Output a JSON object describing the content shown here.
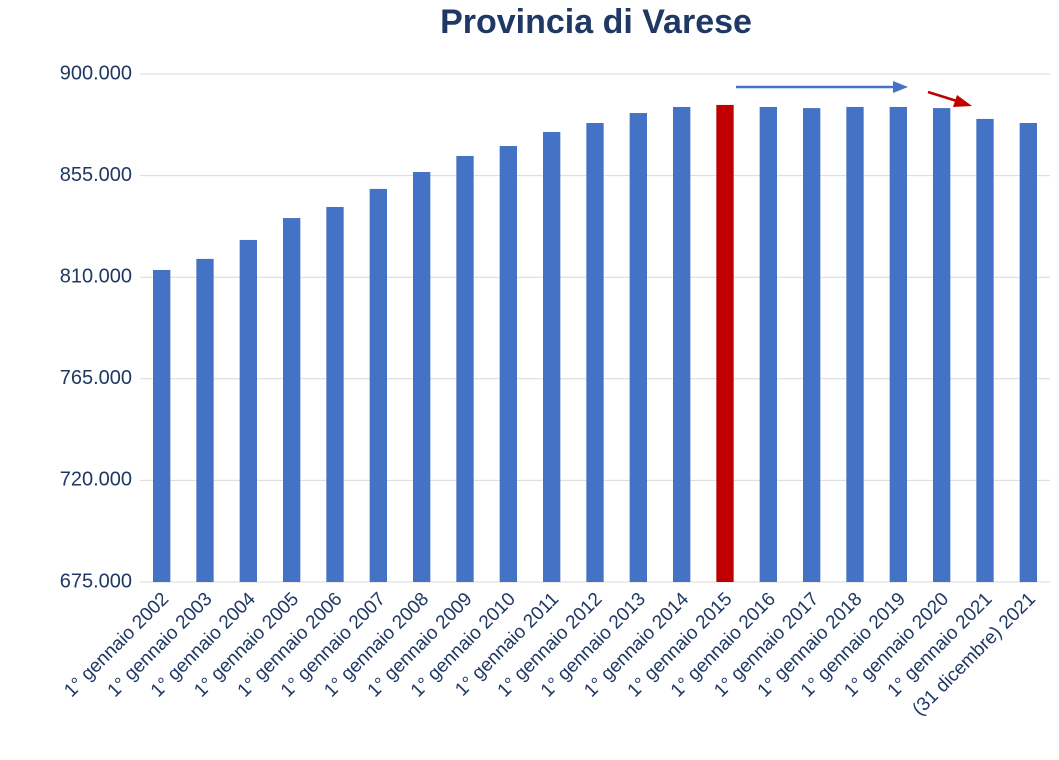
{
  "chart_data": {
    "type": "bar",
    "title": "Provincia di Varese",
    "categories": [
      "1° gennaio 2002",
      "1° gennaio 2003",
      "1° gennaio 2004",
      "1° gennaio 2005",
      "1° gennaio 2006",
      "1° gennaio 2007",
      "1° gennaio 2008",
      "1° gennaio 2009",
      "1° gennaio 2010",
      "1° gennaio 2011",
      "1° gennaio 2012",
      "1° gennaio 2013",
      "1° gennaio 2014",
      "1° gennaio 2015",
      "1° gennaio 2016",
      "1° gennaio 2017",
      "1° gennaio 2018",
      "1° gennaio 2019",
      "1° gennaio 2020",
      "1° gennaio 2021",
      "(31 dicembre) 2021"
    ],
    "values": [
      813200,
      818100,
      826500,
      836200,
      841100,
      849100,
      856600,
      863700,
      868100,
      874300,
      878300,
      882700,
      885400,
      886300,
      885400,
      884900,
      885400,
      885400,
      884900,
      880100,
      878300
    ],
    "colors": [
      "#4472c4",
      "#4472c4",
      "#4472c4",
      "#4472c4",
      "#4472c4",
      "#4472c4",
      "#4472c4",
      "#4472c4",
      "#4472c4",
      "#4472c4",
      "#4472c4",
      "#4472c4",
      "#4472c4",
      "#c00000",
      "#4472c4",
      "#4472c4",
      "#4472c4",
      "#4472c4",
      "#4472c4",
      "#4472c4",
      "#4472c4"
    ],
    "ylim": [
      675000,
      900000
    ],
    "yticks": [
      {
        "value": 675000,
        "label": "675.000"
      },
      {
        "value": 720000,
        "label": "720.000"
      },
      {
        "value": 765000,
        "label": "765.000"
      },
      {
        "value": 810000,
        "label": "810.000"
      },
      {
        "value": 855000,
        "label": "855.000"
      },
      {
        "value": 900000,
        "label": "900.000"
      }
    ],
    "grid": true
  }
}
